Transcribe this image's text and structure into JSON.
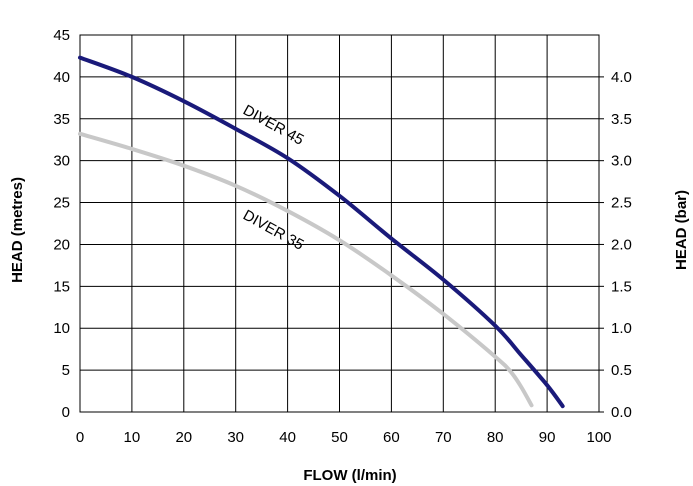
{
  "chart_data": {
    "type": "line",
    "title": "",
    "xlabel": "FLOW (l/min)",
    "ylabel": "HEAD (metres)",
    "y2label": "HEAD (bar)",
    "xlim": [
      0,
      100
    ],
    "ylim": [
      0,
      45
    ],
    "y2lim": [
      0,
      4.5
    ],
    "xticks": [
      0,
      10,
      20,
      30,
      40,
      50,
      60,
      70,
      80,
      90,
      100
    ],
    "yticks": [
      0,
      5,
      10,
      15,
      20,
      25,
      30,
      35,
      40,
      45
    ],
    "y2ticks": [
      0.0,
      0.5,
      1.0,
      1.5,
      2.0,
      2.5,
      3.0,
      3.5,
      4.0
    ],
    "grid": true,
    "legend": "none",
    "series": [
      {
        "name": "DIVER 45",
        "color": "#1a1a7a",
        "x": [
          0,
          10,
          20,
          30,
          40,
          50,
          60,
          70,
          80,
          85,
          90,
          93
        ],
        "y": [
          42.3,
          40,
          37.1,
          33.8,
          30.3,
          25.8,
          20.7,
          15.8,
          10.3,
          6.8,
          3.2,
          0.7
        ]
      },
      {
        "name": "DIVER 35",
        "color": "#c8c8c8",
        "x": [
          0,
          10,
          20,
          30,
          40,
          50,
          60,
          70,
          80,
          83,
          85,
          87
        ],
        "y": [
          33.2,
          31.4,
          29.4,
          27,
          24,
          20.5,
          16.3,
          11.7,
          6.6,
          4.8,
          3,
          0.8
        ]
      }
    ]
  }
}
